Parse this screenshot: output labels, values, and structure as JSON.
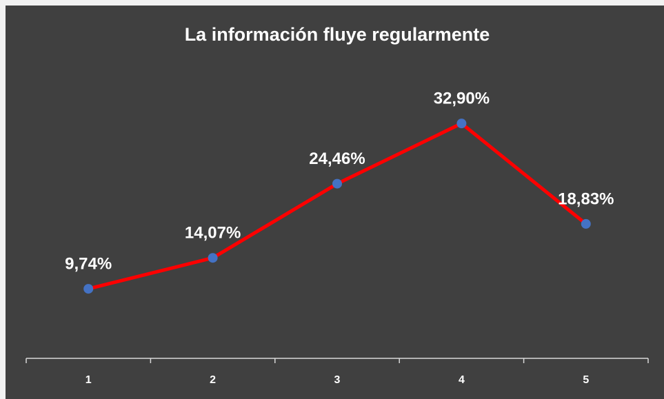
{
  "chart_data": {
    "type": "line",
    "title": "La información fluye regularmente",
    "categories": [
      "1",
      "2",
      "3",
      "4",
      "5"
    ],
    "values": [
      9.74,
      14.07,
      24.46,
      32.9,
      18.83
    ],
    "value_labels": [
      "9,74%",
      "14,07%",
      "24,46%",
      "32,90%",
      "18,83%"
    ],
    "color": "#ff0000",
    "marker_color": "#4472c4",
    "ylim": [
      0,
      40
    ]
  }
}
